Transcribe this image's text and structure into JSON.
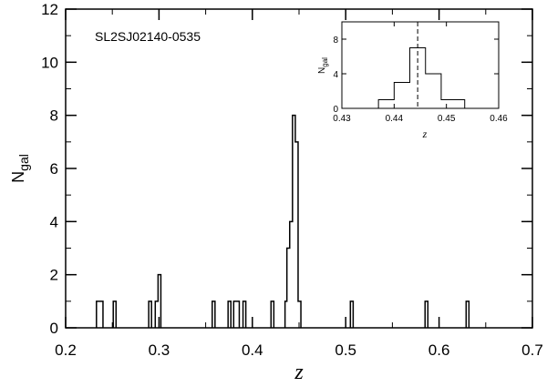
{
  "chart_data": [
    {
      "type": "histogram",
      "title": "SL2SJ02140-0535",
      "xlabel": "z",
      "ylabel_main": "N",
      "ylabel_sub": "gal",
      "xlim": [
        0.2,
        0.7
      ],
      "ylim": [
        0,
        12
      ],
      "x_ticks": [
        0.2,
        0.3,
        0.4,
        0.5,
        0.6,
        0.7
      ],
      "x_tick_labels": [
        "0.2",
        "0.3",
        "0.4",
        "0.5",
        "0.6",
        "0.7"
      ],
      "y_ticks": [
        0,
        2,
        4,
        6,
        8,
        10,
        12
      ],
      "y_tick_labels": [
        "0",
        "2",
        "4",
        "6",
        "8",
        "10",
        "12"
      ],
      "bins": [
        {
          "x0": 0.233,
          "x1": 0.24,
          "count": 1
        },
        {
          "x0": 0.251,
          "x1": 0.254,
          "count": 1
        },
        {
          "x0": 0.289,
          "x1": 0.292,
          "count": 1
        },
        {
          "x0": 0.296,
          "x1": 0.299,
          "count": 1
        },
        {
          "x0": 0.299,
          "x1": 0.302,
          "count": 2
        },
        {
          "x0": 0.357,
          "x1": 0.36,
          "count": 1
        },
        {
          "x0": 0.374,
          "x1": 0.377,
          "count": 1
        },
        {
          "x0": 0.38,
          "x1": 0.383,
          "count": 1
        },
        {
          "x0": 0.383,
          "x1": 0.386,
          "count": 1
        },
        {
          "x0": 0.39,
          "x1": 0.393,
          "count": 1
        },
        {
          "x0": 0.42,
          "x1": 0.423,
          "count": 1
        },
        {
          "x0": 0.435,
          "x1": 0.437,
          "count": 1
        },
        {
          "x0": 0.437,
          "x1": 0.44,
          "count": 3
        },
        {
          "x0": 0.44,
          "x1": 0.443,
          "count": 4
        },
        {
          "x0": 0.443,
          "x1": 0.446,
          "count": 8
        },
        {
          "x0": 0.446,
          "x1": 0.449,
          "count": 7
        },
        {
          "x0": 0.449,
          "x1": 0.452,
          "count": 1
        },
        {
          "x0": 0.505,
          "x1": 0.508,
          "count": 1
        },
        {
          "x0": 0.585,
          "x1": 0.588,
          "count": 1
        },
        {
          "x0": 0.629,
          "x1": 0.632,
          "count": 1
        }
      ]
    },
    {
      "type": "histogram",
      "title": "",
      "xlabel": "z",
      "ylabel_main": "N",
      "ylabel_sub": "gal",
      "xlim": [
        0.43,
        0.46
      ],
      "ylim": [
        0,
        10
      ],
      "x_ticks": [
        0.43,
        0.44,
        0.45,
        0.46
      ],
      "x_tick_labels": [
        "0.43",
        "0.44",
        "0.45",
        "0.46"
      ],
      "y_ticks": [
        0,
        4,
        8
      ],
      "y_tick_labels": [
        "0",
        "4",
        "8"
      ],
      "vline_x": 0.4445,
      "bins": [
        {
          "x0": 0.437,
          "x1": 0.44,
          "count": 1
        },
        {
          "x0": 0.44,
          "x1": 0.443,
          "count": 3
        },
        {
          "x0": 0.443,
          "x1": 0.446,
          "count": 7
        },
        {
          "x0": 0.446,
          "x1": 0.449,
          "count": 4
        },
        {
          "x0": 0.449,
          "x1": 0.4535,
          "count": 1
        }
      ]
    }
  ]
}
